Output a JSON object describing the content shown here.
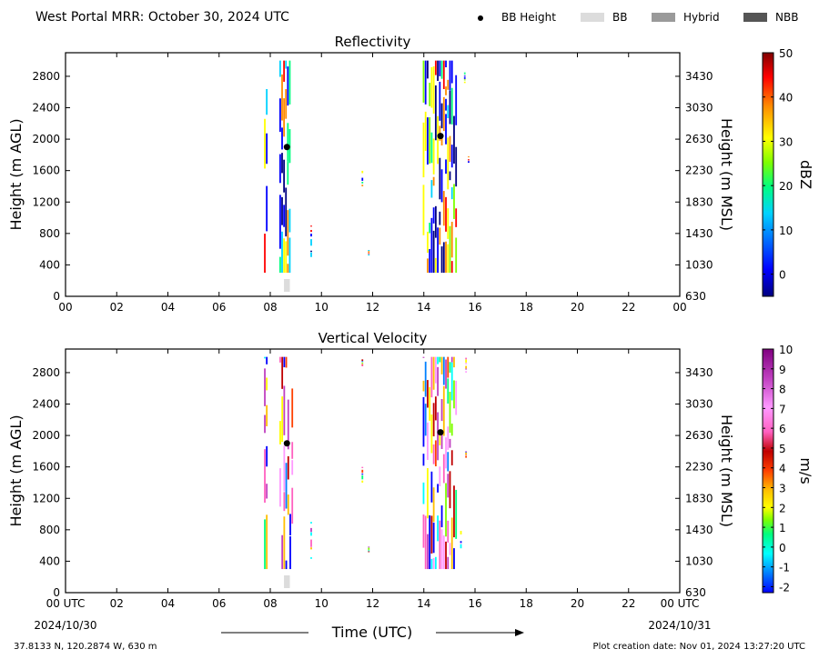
{
  "header": {
    "title": "West Portal MRR:  October 30, 2024 UTC",
    "legend": [
      {
        "label": "BB Height",
        "kind": "dot",
        "color": "#000000"
      },
      {
        "label": "BB",
        "kind": "box",
        "color": "#dcdcdc"
      },
      {
        "label": "Hybrid",
        "kind": "box",
        "color": "#9a9a9a"
      },
      {
        "label": "NBB",
        "kind": "box",
        "color": "#555555"
      }
    ]
  },
  "chart_data": [
    {
      "type": "heatmap",
      "title": "Reflectivity",
      "ylabel": "Height (m AGL)",
      "ylabel_right": "Height (m MSL)",
      "xlim": [
        0,
        24
      ],
      "ylim": [
        0,
        3100
      ],
      "x_ticks": [
        "00",
        "02",
        "04",
        "06",
        "08",
        "10",
        "12",
        "14",
        "16",
        "18",
        "20",
        "22",
        "00"
      ],
      "y_ticks": [
        0,
        400,
        800,
        1200,
        1600,
        2000,
        2400,
        2800
      ],
      "y_ticks_right": [
        "630",
        "1030",
        "1430",
        "1830",
        "2230",
        "2630",
        "3030",
        "3430"
      ],
      "colorbar": {
        "label": "dBZ",
        "range": [
          -5,
          50
        ],
        "ticks": [
          0,
          10,
          20,
          30,
          40,
          50
        ]
      },
      "bb_height": [
        {
          "x": 8.65,
          "y": 1900
        },
        {
          "x": 14.65,
          "y": 2040
        }
      ],
      "bb_type": [
        {
          "x0": 8.5,
          "x1": 8.8,
          "class": "BB"
        }
      ],
      "precip_segments": [
        {
          "x0": 7.75,
          "x1": 7.9,
          "y0": 300,
          "y1": 3000
        },
        {
          "x0": 8.35,
          "x1": 8.8,
          "y0": 300,
          "y1": 3000
        },
        {
          "x0": 9.55,
          "x1": 9.65,
          "y0": 500,
          "y1": 900
        },
        {
          "x0": 11.55,
          "x1": 11.65,
          "y0": 1400,
          "y1": 1600
        },
        {
          "x0": 11.8,
          "x1": 11.9,
          "y0": 520,
          "y1": 600
        },
        {
          "x0": 13.95,
          "x1": 15.3,
          "y0": 300,
          "y1": 3000
        },
        {
          "x0": 15.55,
          "x1": 15.65,
          "y0": 2700,
          "y1": 2850
        },
        {
          "x0": 15.7,
          "x1": 15.8,
          "y0": 1700,
          "y1": 1780
        }
      ]
    },
    {
      "type": "heatmap",
      "title": "Vertical Velocity",
      "ylabel": "Height (m AGL)",
      "ylabel_right": "Height (m MSL)",
      "xlabel": "Time (UTC)",
      "xlim": [
        0,
        24
      ],
      "ylim": [
        0,
        3100
      ],
      "x_ticks": [
        "00 UTC",
        "02",
        "04",
        "06",
        "08",
        "10",
        "12",
        "14",
        "16",
        "18",
        "20",
        "22",
        "00 UTC"
      ],
      "x_dates": [
        "2024/10/30",
        "2024/10/31"
      ],
      "y_ticks": [
        0,
        400,
        800,
        1200,
        1600,
        2000,
        2400,
        2800
      ],
      "y_ticks_right": [
        "630",
        "1030",
        "1430",
        "1830",
        "2230",
        "2630",
        "3030",
        "3430"
      ],
      "colorbar": {
        "label": "m/s",
        "range": [
          -2.3,
          10
        ],
        "ticks": [
          -2,
          -1,
          0,
          1,
          2,
          3,
          4,
          5,
          6,
          7,
          8,
          9,
          10
        ]
      },
      "bb_height": [
        {
          "x": 8.65,
          "y": 1900
        },
        {
          "x": 14.65,
          "y": 2040
        }
      ],
      "bb_type": [
        {
          "x0": 8.5,
          "x1": 8.8,
          "class": "BB"
        }
      ],
      "precip_segments": [
        {
          "x0": 7.75,
          "x1": 7.9,
          "y0": 300,
          "y1": 3000
        },
        {
          "x0": 8.35,
          "x1": 8.9,
          "y0": 300,
          "y1": 3000
        },
        {
          "x0": 9.55,
          "x1": 9.65,
          "y0": 430,
          "y1": 900
        },
        {
          "x0": 11.55,
          "x1": 11.65,
          "y0": 1400,
          "y1": 1600
        },
        {
          "x0": 11.8,
          "x1": 11.9,
          "y0": 520,
          "y1": 600
        },
        {
          "x0": 11.55,
          "x1": 11.65,
          "y0": 2880,
          "y1": 2980
        },
        {
          "x0": 13.95,
          "x1": 15.3,
          "y0": 300,
          "y1": 3000
        },
        {
          "x0": 15.4,
          "x1": 15.5,
          "y0": 550,
          "y1": 800
        },
        {
          "x0": 15.6,
          "x1": 15.7,
          "y0": 1700,
          "y1": 1800
        },
        {
          "x0": 15.6,
          "x1": 15.7,
          "y0": 2800,
          "y1": 3000
        }
      ]
    }
  ],
  "footer": {
    "location": "37.8133 N, 120.2874 W, 630 m",
    "created": "Plot creation date: Nov 01, 2024 13:27:20 UTC"
  }
}
